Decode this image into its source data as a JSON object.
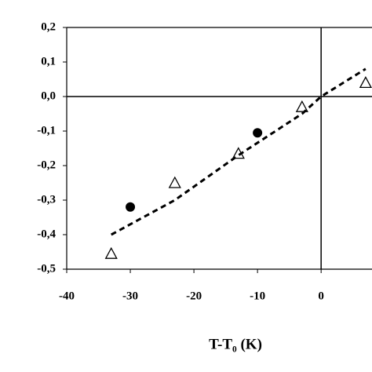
{
  "chart_data": {
    "type": "scatter",
    "x_label": "T-T₀ (K)",
    "xlim": [
      -40,
      8
    ],
    "xticks": [
      -40,
      -30,
      -20,
      -10,
      0
    ],
    "ylim": [
      -0.5,
      0.2
    ],
    "yticks": [
      {
        "value": -0.5,
        "label": "-0,5"
      },
      {
        "value": -0.4,
        "label": "-0,4"
      },
      {
        "value": -0.3,
        "label": "-0,3"
      },
      {
        "value": -0.2,
        "label": "-0,2"
      },
      {
        "value": -0.1,
        "label": "-0,1"
      },
      {
        "value": 0,
        "label": "0,0"
      },
      {
        "value": 0.1,
        "label": "0,1"
      },
      {
        "value": 0.2,
        "label": "0,2"
      }
    ],
    "series": [
      {
        "marker": "circle",
        "color": "#000000",
        "x": [
          -30,
          -10
        ],
        "values": [
          -0.32,
          -0.105
        ]
      },
      {
        "marker": "triangle",
        "color": "#000000",
        "x": [
          -33,
          -23,
          -13,
          -3,
          7
        ],
        "values": [
          -0.455,
          -0.25,
          -0.165,
          -0.03,
          0.04
        ]
      },
      {
        "marker": "dashed-line",
        "color": "#000000",
        "x": [
          -33,
          -23,
          -13,
          -3,
          0,
          7
        ],
        "values": [
          -0.4,
          -0.3,
          -0.17,
          -0.05,
          0,
          0.08
        ]
      }
    ]
  }
}
